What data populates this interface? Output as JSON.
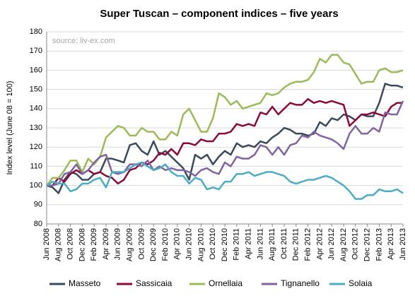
{
  "chart_data": {
    "type": "line",
    "title": "Super Tuscan – component indices – five years",
    "annotation": "source: liv-ex.com",
    "y_label": "Index level (June  08 = 100)",
    "categories": [
      "Jun 2008",
      null,
      "Aug 2008",
      null,
      "Oct 2008",
      null,
      "Dec 2008",
      null,
      "Feb 2009",
      null,
      "Apr 2009",
      null,
      "Jun 2009",
      null,
      "Aug 2009",
      null,
      "Oct 2009",
      null,
      "Dec 2009",
      null,
      "Feb 2010",
      null,
      "Apr 2010",
      null,
      "Jun 2010",
      null,
      "Aug 2010",
      null,
      "Oct 2010",
      null,
      "Dec 2010",
      null,
      "Feb 2011",
      null,
      "Apr 2011",
      null,
      "Jun 2011",
      null,
      "Aug 2011",
      null,
      "Oct 2011",
      null,
      "Dec 2011",
      null,
      "Feb 2012",
      null,
      "Apr 2012",
      null,
      "Jun 2012",
      null,
      "Aug 2012",
      null,
      "Oct 2012",
      null,
      "Dec 2012",
      null,
      "Feb 2013",
      null,
      "Apr 2013",
      null,
      "Jun 2013"
    ],
    "ylim": [
      80,
      180
    ],
    "yticks": [
      80,
      90,
      100,
      110,
      120,
      130,
      140,
      150,
      160,
      170,
      180
    ],
    "grid": true,
    "legend": "bottom",
    "series": [
      {
        "name": "Masseto",
        "color": "#3a4a5c",
        "values": [
          100,
          99,
          96,
          103,
          107,
          106,
          103,
          103,
          106,
          107,
          114,
          114,
          113,
          112,
          121,
          122,
          118,
          116,
          123,
          116,
          118,
          115,
          112,
          109,
          103,
          116,
          114,
          116,
          111,
          115,
          118,
          116,
          122,
          120,
          121,
          120,
          123,
          122,
          125,
          127,
          130,
          129,
          127,
          127,
          126,
          127,
          133,
          131,
          135,
          134,
          137,
          136,
          134,
          137,
          136,
          136,
          143,
          153,
          152,
          152,
          151
        ]
      },
      {
        "name": "Sassicaia",
        "color": "#8b0a38",
        "values": [
          100,
          100,
          104,
          102,
          106,
          108,
          106,
          108,
          106,
          107,
          105,
          104,
          101,
          103,
          108,
          109,
          112,
          111,
          113,
          117,
          116,
          119,
          116,
          122,
          122,
          121,
          124,
          123,
          123,
          127,
          127,
          128,
          132,
          131,
          132,
          131,
          138,
          137,
          141,
          137,
          140,
          143,
          142,
          142,
          145,
          143,
          144,
          143,
          144,
          143,
          142,
          131,
          134,
          137,
          137,
          138,
          137,
          136,
          141,
          143,
          143
        ]
      },
      {
        "name": "Ornellaia",
        "color": "#9bbb59",
        "values": [
          100,
          104,
          104,
          108,
          113,
          113,
          107,
          114,
          111,
          115,
          125,
          128,
          131,
          130,
          126,
          126,
          130,
          128,
          128,
          124,
          124,
          128,
          126,
          137,
          140,
          134,
          128,
          128,
          135,
          148,
          146,
          142,
          144,
          140,
          141,
          142,
          143,
          148,
          147,
          148,
          151,
          153,
          154,
          154,
          155,
          159,
          166,
          164,
          168,
          168,
          164,
          163,
          158,
          153,
          154,
          154,
          160,
          161,
          159,
          159,
          160
        ]
      },
      {
        "name": "Tignanello",
        "color": "#8064a2",
        "values": [
          100,
          100,
          101,
          106,
          107,
          111,
          106,
          108,
          112,
          115,
          116,
          107,
          106,
          107,
          111,
          111,
          110,
          113,
          108,
          110,
          108,
          109,
          108,
          108,
          107,
          105,
          108,
          109,
          107,
          106,
          112,
          110,
          115,
          114,
          114,
          116,
          121,
          120,
          116,
          120,
          116,
          121,
          122,
          126,
          125,
          128,
          126,
          125,
          124,
          122,
          119,
          127,
          131,
          127,
          127,
          130,
          128,
          138,
          137,
          137,
          144
        ]
      },
      {
        "name": "Solaia",
        "color": "#4bacc6",
        "values": [
          100,
          102,
          101,
          101,
          97,
          98,
          101,
          101,
          103,
          104,
          99,
          107,
          107,
          107,
          109,
          111,
          112,
          110,
          108,
          109,
          111,
          107,
          105,
          105,
          101,
          104,
          103,
          98,
          99,
          98,
          102,
          102,
          106,
          106,
          107,
          105,
          106,
          107,
          107,
          106,
          105,
          102,
          101,
          102,
          103,
          103,
          104,
          105,
          104,
          102,
          100,
          97,
          93,
          93,
          95,
          95,
          98,
          97,
          97,
          98,
          96
        ]
      }
    ]
  }
}
